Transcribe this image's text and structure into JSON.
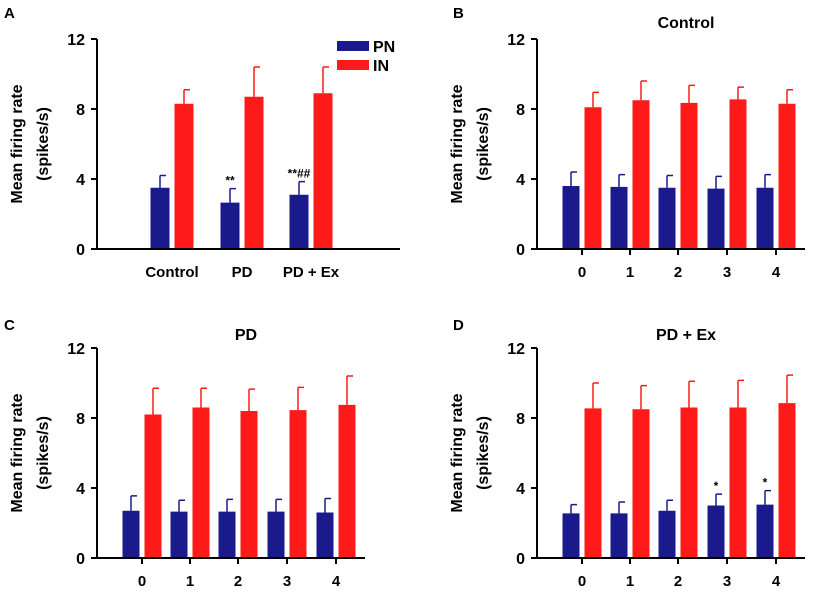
{
  "colors": {
    "pn": "#1a1a8c",
    "in": "#ff1a1a",
    "axis": "#000000"
  },
  "chart_data": [
    {
      "panel_label": "A",
      "type": "bar",
      "title": "",
      "ylabel_line1": "Mean firing rate",
      "ylabel_line2": "(spikes/s)",
      "xlabel": "",
      "ylim": [
        0,
        12
      ],
      "yticks": [
        "0",
        "4",
        "8",
        "12"
      ],
      "categories": [
        "Control",
        "PD",
        "PD + Ex"
      ],
      "legend": {
        "entries": [
          "PN",
          "IN"
        ],
        "placement": "top-right"
      },
      "series": [
        {
          "name": "PN",
          "values": [
            3.5,
            2.65,
            3.1
          ],
          "errors": [
            0.7,
            0.8,
            0.75
          ]
        },
        {
          "name": "IN",
          "values": [
            8.3,
            8.7,
            8.9
          ],
          "errors": [
            0.8,
            1.7,
            1.5
          ]
        }
      ],
      "annotations": [
        {
          "series": 0,
          "category": 1,
          "text": "**"
        },
        {
          "series": 0,
          "category": 2,
          "text": "**##"
        }
      ]
    },
    {
      "panel_label": "B",
      "type": "bar",
      "title": "Control",
      "ylabel_line1": "Mean firing rate",
      "ylabel_line2": "(spikes/s)",
      "xlabel": "",
      "ylim": [
        0,
        12
      ],
      "yticks": [
        "0",
        "4",
        "8",
        "12"
      ],
      "categories": [
        "0",
        "1",
        "2",
        "3",
        "4"
      ],
      "series": [
        {
          "name": "PN",
          "values": [
            3.6,
            3.55,
            3.5,
            3.45,
            3.5
          ],
          "errors": [
            0.8,
            0.7,
            0.7,
            0.7,
            0.75
          ]
        },
        {
          "name": "IN",
          "values": [
            8.1,
            8.5,
            8.35,
            8.55,
            8.3
          ],
          "errors": [
            0.85,
            1.1,
            1.0,
            0.7,
            0.8
          ]
        }
      ],
      "annotations": []
    },
    {
      "panel_label": "C",
      "type": "bar",
      "title": "PD",
      "ylabel_line1": "Mean firing rate",
      "ylabel_line2": "(spikes/s)",
      "xlabel": "",
      "ylim": [
        0,
        12
      ],
      "yticks": [
        "0",
        "4",
        "8",
        "12"
      ],
      "categories": [
        "0",
        "1",
        "2",
        "3",
        "4"
      ],
      "series": [
        {
          "name": "PN",
          "values": [
            2.7,
            2.65,
            2.65,
            2.65,
            2.6
          ],
          "errors": [
            0.85,
            0.65,
            0.7,
            0.7,
            0.8
          ]
        },
        {
          "name": "IN",
          "values": [
            8.2,
            8.6,
            8.4,
            8.45,
            8.75
          ],
          "errors": [
            1.5,
            1.1,
            1.25,
            1.3,
            1.65
          ]
        }
      ],
      "annotations": []
    },
    {
      "panel_label": "D",
      "type": "bar",
      "title": "PD + Ex",
      "ylabel_line1": "Mean firing rate",
      "ylabel_line2": "(spikes/s)",
      "xlabel": "",
      "ylim": [
        0,
        12
      ],
      "yticks": [
        "0",
        "4",
        "8",
        "12"
      ],
      "categories": [
        "0",
        "1",
        "2",
        "3",
        "4"
      ],
      "series": [
        {
          "name": "PN",
          "values": [
            2.55,
            2.55,
            2.7,
            3.0,
            3.05
          ],
          "errors": [
            0.5,
            0.65,
            0.6,
            0.65,
            0.8
          ]
        },
        {
          "name": "IN",
          "values": [
            8.55,
            8.5,
            8.6,
            8.6,
            8.85
          ],
          "errors": [
            1.45,
            1.35,
            1.5,
            1.55,
            1.6
          ]
        }
      ],
      "annotations": [
        {
          "series": 0,
          "category": 3,
          "text": "*"
        },
        {
          "series": 0,
          "category": 4,
          "text": "*"
        }
      ]
    }
  ]
}
